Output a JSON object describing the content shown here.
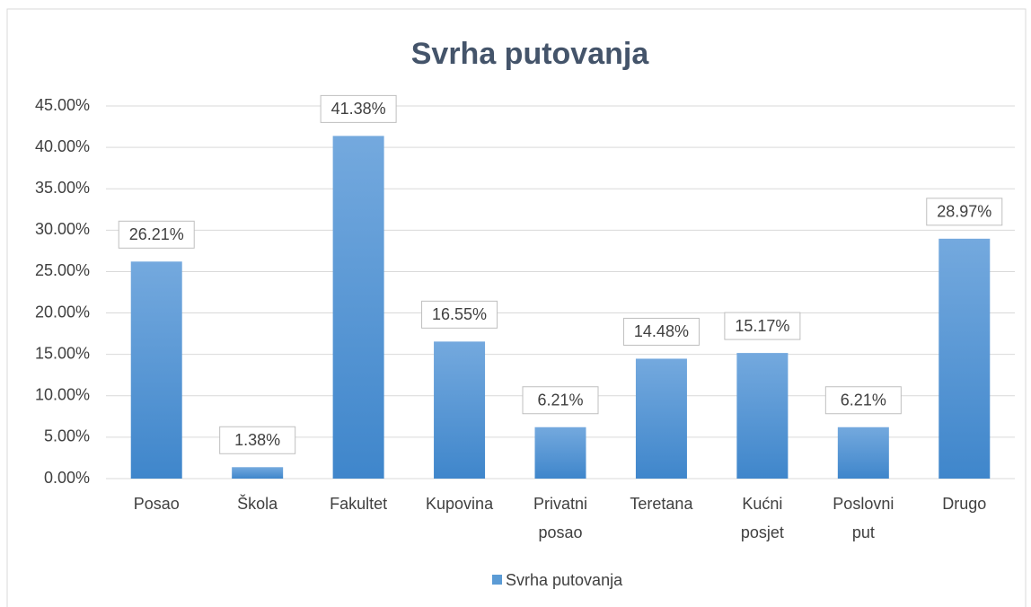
{
  "chart_data": {
    "type": "bar",
    "title": "Svrha putovanja",
    "categories": [
      "Posao",
      "Škola",
      "Fakultet",
      "Kupovina",
      "Privatni posao",
      "Teretana",
      "Kućni posjet",
      "Poslovni put",
      "Drugo"
    ],
    "series": [
      {
        "name": "Svrha putovanja",
        "color": "#5b9bd5",
        "values": [
          26.21,
          1.38,
          41.38,
          16.55,
          6.21,
          14.48,
          15.17,
          6.21,
          28.97
        ],
        "value_labels": [
          "26.21%",
          "1.38%",
          "41.38%",
          "16.55%",
          "6.21%",
          "14.48%",
          "15.17%",
          "6.21%",
          "28.97%"
        ]
      }
    ],
    "ylim": [
      0,
      45
    ],
    "yticks": [
      {
        "value": 0,
        "label": "0.00%"
      },
      {
        "value": 5,
        "label": "5.00%"
      },
      {
        "value": 10,
        "label": "10.00%"
      },
      {
        "value": 15,
        "label": "15.00%"
      },
      {
        "value": 20,
        "label": "20.00%"
      },
      {
        "value": 25,
        "label": "25.00%"
      },
      {
        "value": 30,
        "label": "30.00%"
      },
      {
        "value": 35,
        "label": "35.00%"
      },
      {
        "value": 40,
        "label": "40.00%"
      },
      {
        "value": 45,
        "label": "45.00%"
      }
    ],
    "grid": true,
    "legend": "bottom"
  }
}
